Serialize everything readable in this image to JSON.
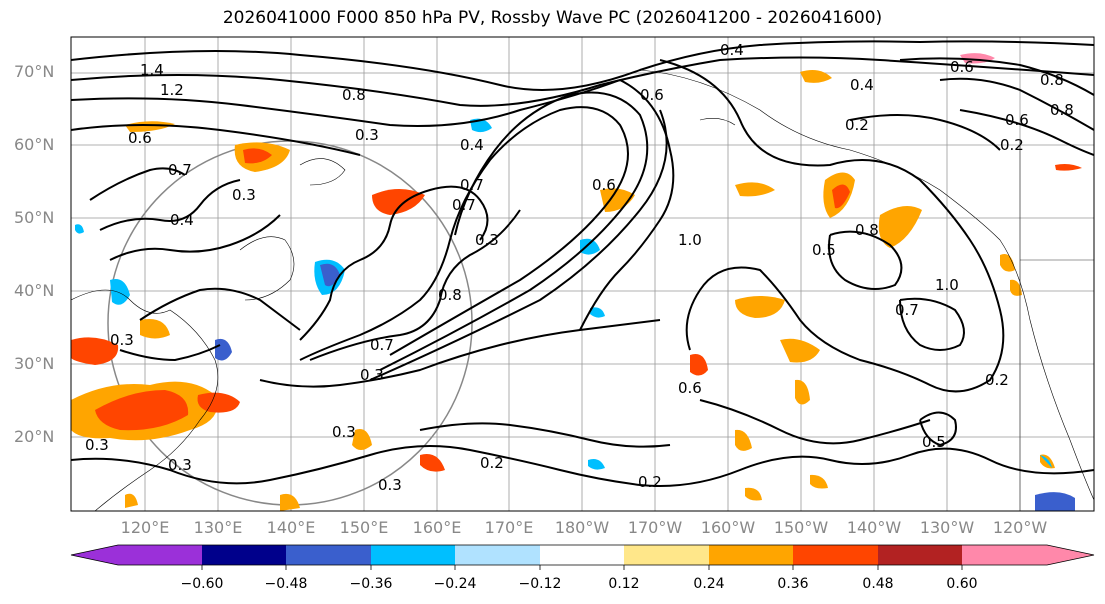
{
  "title": "2026041000 F000 850 hPa PV, Rossby Wave PC (2026041200 - 2026041600)",
  "lat_labels": [
    "70°N",
    "60°N",
    "50°N",
    "40°N",
    "30°N",
    "20°N"
  ],
  "lon_labels": [
    "120°E",
    "130°E",
    "140°E",
    "150°E",
    "160°E",
    "170°E",
    "180°W",
    "170°W",
    "160°W",
    "150°W",
    "140°W",
    "130°W",
    "120°W"
  ],
  "colorbar": {
    "ticks": [
      "−0.60",
      "−0.48",
      "−0.36",
      "−0.24",
      "−0.12",
      "0.12",
      "0.24",
      "0.36",
      "0.48",
      "0.60"
    ],
    "colors": [
      "#9b30d9",
      "#00008b",
      "#3a5fcd",
      "#00bfff",
      "#b0e2ff",
      "#ffffff",
      "#ffe78a",
      "#ffa500",
      "#ff4500",
      "#b22222",
      "#ff88aa"
    ]
  },
  "contour_labels": [
    "1.4",
    "1.2",
    "0.6",
    "0.7",
    "0.4",
    "0.3",
    "0.8",
    "0.3",
    "0.7",
    "0.4",
    "0.7",
    "0.3",
    "0.8",
    "0.7",
    "0.3",
    "0.6",
    "1.0",
    "0.4",
    "0.5",
    "0.8",
    "1.0",
    "0.7",
    "0.2",
    "0.3",
    "0.6",
    "0.3",
    "0.2",
    "0.2",
    "0.5",
    "0.2",
    "0.4",
    "0.2",
    "0.8",
    "0.3",
    "0.3",
    "0.6",
    "0.3",
    "0.8",
    "0.6",
    "0.6"
  ],
  "colors": {
    "axis_label": "#888888",
    "contour": "#000000",
    "grid": "#999999"
  }
}
